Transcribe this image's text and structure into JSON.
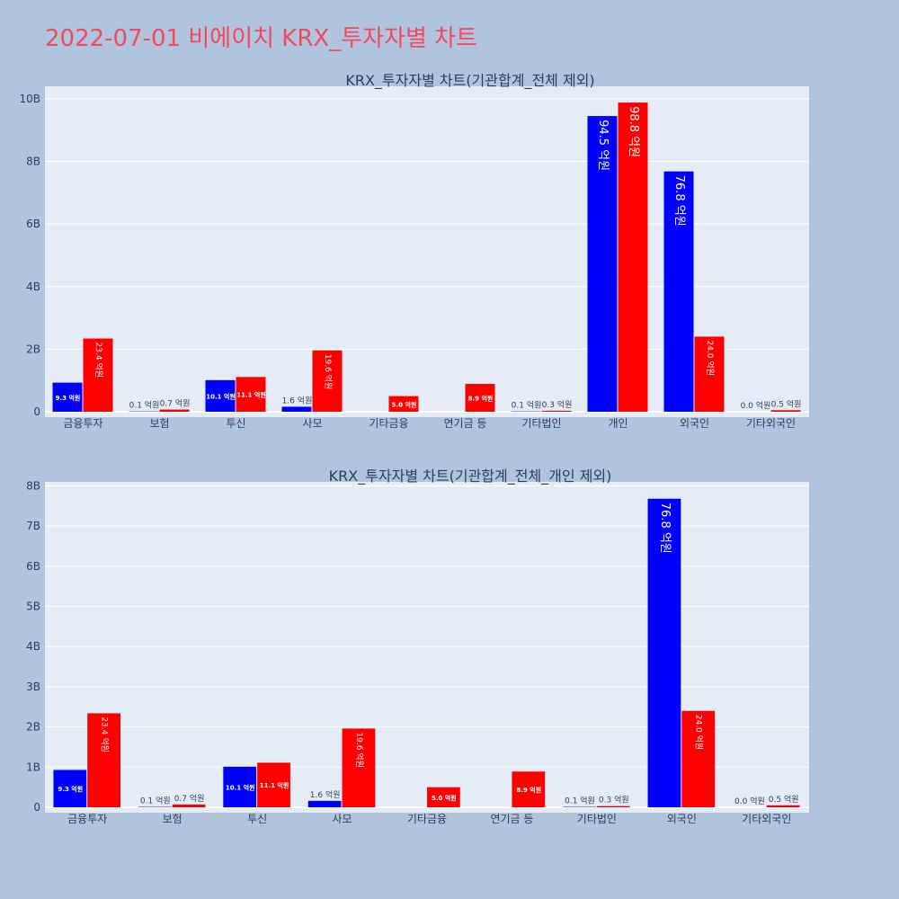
{
  "page": {
    "title": "2022-07-01 비에이치 KRX_투자자별 차트"
  },
  "colors": {
    "buy": "#0000ff",
    "sell": "#ff0000",
    "plot_bg": "#e5ecf6",
    "paper_bg": "#b0c4de"
  },
  "chart_data": [
    {
      "type": "bar",
      "title": "KRX_투자자별 차트(기관합계_전체 제외)",
      "categories": [
        "금융투자",
        "보험",
        "투신",
        "사모",
        "기타금융",
        "연기금 등",
        "기타법인",
        "개인",
        "외국인",
        "기타외국인"
      ],
      "series": [
        {
          "color": "blue",
          "values": [
            0.93,
            0.01,
            1.01,
            0.16,
            0,
            0,
            0.01,
            9.45,
            7.68,
            0.0
          ],
          "labels": [
            "9.3 억원",
            "0.1 억원",
            "10.1 억원",
            "1.6 억원",
            "",
            "",
            "0.1 억원",
            "94.5 억원",
            "76.8 억원",
            "0.0 억원"
          ]
        },
        {
          "color": "red",
          "values": [
            2.34,
            0.07,
            1.11,
            1.96,
            0.5,
            0.89,
            0.03,
            9.88,
            2.4,
            0.05
          ],
          "labels": [
            "23.4 억원",
            "0.7 억원",
            "11.1 억원",
            "19.6 억원",
            "5.0 억원",
            "8.9 억원",
            "0.3 억원",
            "98.8 억원",
            "24.0 억원",
            "0.5 억원"
          ]
        }
      ],
      "yticks": [
        0,
        2,
        4,
        6,
        8,
        10
      ],
      "ytick_labels": [
        "0",
        "2B",
        "4B",
        "6B",
        "8B",
        "10B"
      ],
      "ylim": [
        0,
        10.4
      ]
    },
    {
      "type": "bar",
      "title": "KRX_투자자별 차트(기관합계_전체_개인 제외)",
      "categories": [
        "금융투자",
        "보험",
        "투신",
        "사모",
        "기타금융",
        "연기금 등",
        "기타법인",
        "외국인",
        "기타외국인"
      ],
      "series": [
        {
          "color": "blue",
          "values": [
            0.93,
            0.01,
            1.01,
            0.16,
            0,
            0,
            0.01,
            7.68,
            0.0
          ],
          "labels": [
            "9.3 억원",
            "0.1 억원",
            "10.1 억원",
            "1.6 억원",
            "",
            "",
            "0.1 억원",
            "76.8 억원",
            "0.0 억원"
          ]
        },
        {
          "color": "red",
          "values": [
            2.34,
            0.07,
            1.11,
            1.96,
            0.5,
            0.89,
            0.03,
            2.4,
            0.05
          ],
          "labels": [
            "23.4 억원",
            "0.7 억원",
            "11.1 억원",
            "19.6 억원",
            "5.0 억원",
            "8.9 억원",
            "0.3 억원",
            "24.0 억원",
            "0.5 억원"
          ]
        }
      ],
      "yticks": [
        0,
        1,
        2,
        3,
        4,
        5,
        6,
        7,
        8
      ],
      "ytick_labels": [
        "0",
        "1B",
        "2B",
        "3B",
        "4B",
        "5B",
        "6B",
        "7B",
        "8B"
      ],
      "ylim": [
        0,
        8.1
      ]
    }
  ]
}
